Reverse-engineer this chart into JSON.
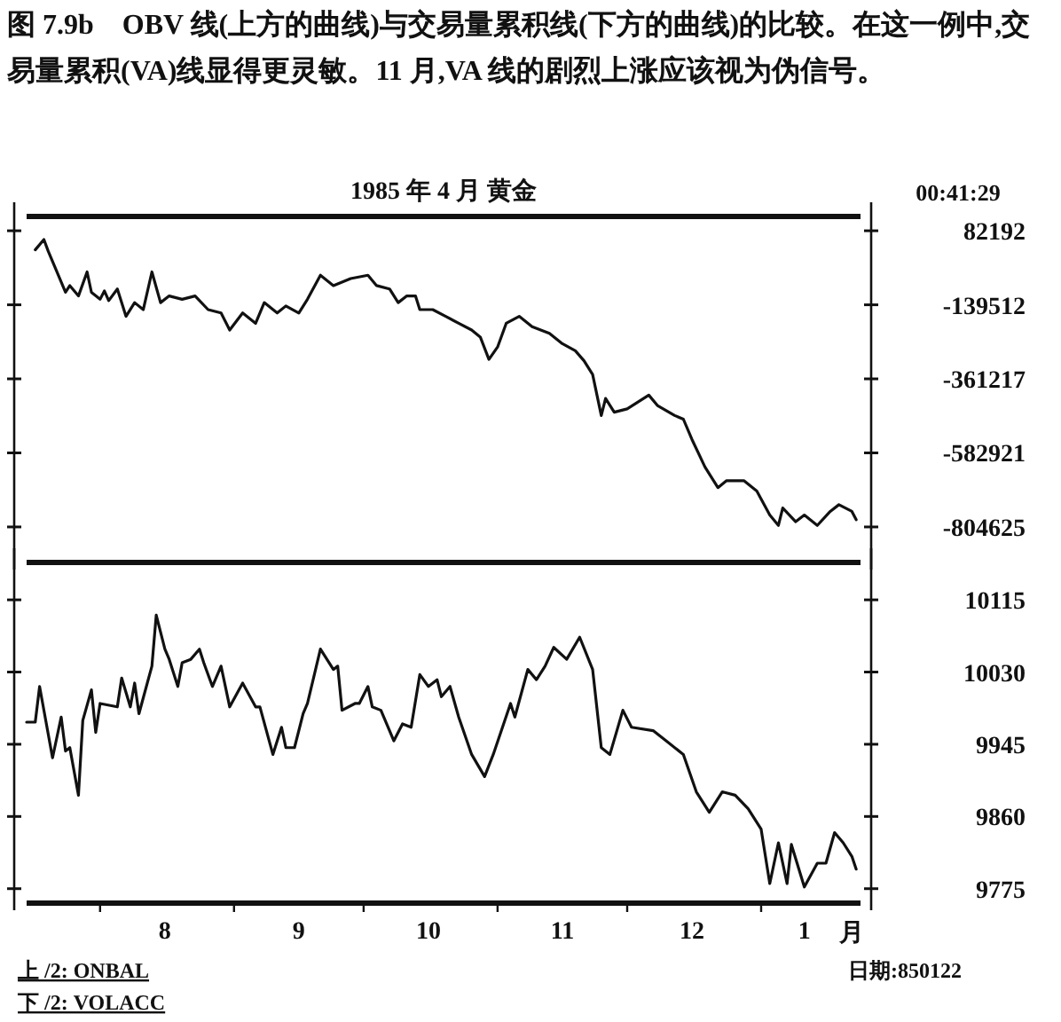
{
  "chart_data": [
    {
      "type": "line",
      "title": "1985 年 4 月 黄金",
      "annotations": [
        "图 7.9b　OBV 线(上方的曲线)与交易量累积线(下方的曲线)的比较。在这一例中,交易量累积(VA)线显得更灵敏。11 月,VA 线的剧烈上涨应该视为伪信号。",
        "00:41:29"
      ],
      "xlim": [
        "1984-07-15",
        "1985-01-24"
      ],
      "ylim": [
        -911000,
        125000
      ],
      "yticks": [
        82192,
        -139512,
        -361217,
        -582921,
        -804625
      ],
      "tick_labels": "y",
      "grid": false,
      "series": [
        {
          "color": "#111111",
          "x": [
            "1984-07-17",
            "1984-07-19",
            "1984-07-20",
            "1984-07-24",
            "1984-07-25",
            "1984-07-27",
            "1984-07-29",
            "1984-07-30",
            "1984-08-01",
            "1984-08-02",
            "1984-08-03",
            "1984-08-05",
            "1984-08-07",
            "1984-08-09",
            "1984-08-11",
            "1984-08-13",
            "1984-08-15",
            "1984-08-17",
            "1984-08-20",
            "1984-08-23",
            "1984-08-26",
            "1984-08-29",
            "1984-08-31",
            "1984-09-03",
            "1984-09-06",
            "1984-09-08",
            "1984-09-11",
            "1984-09-13",
            "1984-09-16",
            "1984-09-18",
            "1984-09-21",
            "1984-09-24",
            "1984-09-28",
            "1984-10-02",
            "1984-10-04",
            "1984-10-07",
            "1984-10-09",
            "1984-10-11",
            "1984-10-13",
            "1984-10-14",
            "1984-10-17",
            "1984-10-20",
            "1984-10-23",
            "1984-10-26",
            "1984-10-28",
            "1984-10-30",
            "1984-11-01",
            "1984-11-03",
            "1984-11-06",
            "1984-11-09",
            "1984-11-13",
            "1984-11-16",
            "1984-11-19",
            "1984-11-21",
            "1984-11-23",
            "1984-11-25",
            "1984-11-26",
            "1984-11-28",
            "1984-12-01",
            "1984-12-06",
            "1984-12-08",
            "1984-12-12",
            "1984-12-14",
            "1984-12-16",
            "1984-12-19",
            "1984-12-22",
            "1984-12-24",
            "1984-12-28",
            "1984-12-31",
            "1985-01-03",
            "1985-01-05",
            "1985-01-06",
            "1985-01-09",
            "1985-01-11",
            "1985-01-14",
            "1985-01-17",
            "1985-01-19",
            "1985-01-22",
            "1985-01-23"
          ],
          "values": [
            25000,
            56000,
            21000,
            -102000,
            -82000,
            -113000,
            -41000,
            -102000,
            -123000,
            -98000,
            -127000,
            -92000,
            -174000,
            -133000,
            -154000,
            -41000,
            -133000,
            -113000,
            -123000,
            -113000,
            -154000,
            -164000,
            -215000,
            -164000,
            -195000,
            -133000,
            -164000,
            -143000,
            -164000,
            -123000,
            -51000,
            -82000,
            -61000,
            -51000,
            -82000,
            -92000,
            -133000,
            -113000,
            -113000,
            -154000,
            -154000,
            -174000,
            -195000,
            -215000,
            -236000,
            -303000,
            -266000,
            -195000,
            -174000,
            -205000,
            -225000,
            -256000,
            -277000,
            -307000,
            -348000,
            -471000,
            -420000,
            -461000,
            -451000,
            -410000,
            -441000,
            -471000,
            -482000,
            -543000,
            -625000,
            -687000,
            -666000,
            -666000,
            -697000,
            -769000,
            -800000,
            -748000,
            -789000,
            -769000,
            -800000,
            -758000,
            -738000,
            -758000,
            -783000
          ]
        }
      ]
    },
    {
      "type": "line",
      "xlabel": "月",
      "annotations": [
        "上 /2: ONBAL",
        "下 /2: VOLACC",
        "日期:850122"
      ],
      "xlim": [
        "1984-07-15",
        "1985-01-24"
      ],
      "xticks": [
        {
          "value": "1984-08-01",
          "label": null
        },
        {
          "value": "1984-08-16",
          "label": "8"
        },
        {
          "value": "1984-09-01",
          "label": null
        },
        {
          "value": "1984-09-16",
          "label": "9"
        },
        {
          "value": "1984-10-01",
          "label": null
        },
        {
          "value": "1984-10-16",
          "label": "10"
        },
        {
          "value": "1984-11-01",
          "label": null
        },
        {
          "value": "1984-11-16",
          "label": "11"
        },
        {
          "value": "1984-12-01",
          "label": null
        },
        {
          "value": "1984-12-16",
          "label": "12"
        },
        {
          "value": "1985-01-01",
          "label": null
        },
        {
          "value": "1985-01-11",
          "label": "1"
        }
      ],
      "ylim": [
        9758,
        10159
      ],
      "yticks": [
        10115,
        10030,
        9945,
        9860,
        9775
      ],
      "grid": false,
      "series": [
        {
          "color": "#111111",
          "x": [
            "1984-07-15",
            "1984-07-17",
            "1984-07-18",
            "1984-07-21",
            "1984-07-23",
            "1984-07-24",
            "1984-07-25",
            "1984-07-27",
            "1984-07-28",
            "1984-07-30",
            "1984-07-31",
            "1984-08-01",
            "1984-08-05",
            "1984-08-06",
            "1984-08-08",
            "1984-08-09",
            "1984-08-10",
            "1984-08-13",
            "1984-08-14",
            "1984-08-16",
            "1984-08-17",
            "1984-08-19",
            "1984-08-20",
            "1984-08-22",
            "1984-08-24",
            "1984-08-25",
            "1984-08-27",
            "1984-08-29",
            "1984-08-31",
            "1984-09-03",
            "1984-09-06",
            "1984-09-07",
            "1984-09-10",
            "1984-09-12",
            "1984-09-13",
            "1984-09-15",
            "1984-09-17",
            "1984-09-18",
            "1984-09-21",
            "1984-09-24",
            "1984-09-25",
            "1984-09-26",
            "1984-09-29",
            "1984-09-30",
            "1984-10-02",
            "1984-10-03",
            "1984-10-05",
            "1984-10-08",
            "1984-10-10",
            "1984-10-12",
            "1984-10-14",
            "1984-10-16",
            "1984-10-18",
            "1984-10-19",
            "1984-10-21",
            "1984-10-23",
            "1984-10-26",
            "1984-10-29",
            "1984-10-31",
            "1984-11-04",
            "1984-11-05",
            "1984-11-08",
            "1984-11-10",
            "1984-11-12",
            "1984-11-14",
            "1984-11-17",
            "1984-11-20",
            "1984-11-23",
            "1984-11-25",
            "1984-11-27",
            "1984-11-30",
            "1984-12-02",
            "1984-12-07",
            "1984-12-10",
            "1984-12-14",
            "1984-12-17",
            "1984-12-20",
            "1984-12-23",
            "1984-12-26",
            "1984-12-29",
            "1985-01-01",
            "1985-01-03",
            "1985-01-05",
            "1985-01-07",
            "1985-01-08",
            "1985-01-11",
            "1985-01-14",
            "1985-01-16",
            "1985-01-18",
            "1985-01-20",
            "1985-01-22",
            "1985-01-23"
          ],
          "values": [
            9971,
            9971,
            10013,
            9929,
            9977,
            9937,
            9941,
            9885,
            9973,
            10009,
            9959,
            9993,
            9989,
            10023,
            9989,
            10017,
            9981,
            10037,
            10097,
            10057,
            10045,
            10013,
            10041,
            10045,
            10057,
            10041,
            10013,
            10037,
            9989,
            10017,
            9989,
            9989,
            9933,
            9965,
            9941,
            9941,
            9981,
            9993,
            10057,
            10033,
            10037,
            9985,
            9993,
            9993,
            10013,
            9989,
            9985,
            9949,
            9969,
            9965,
            10027,
            10013,
            10021,
            10001,
            10013,
            9977,
            9933,
            9907,
            9933,
            9993,
            9977,
            10033,
            10021,
            10037,
            10059,
            10045,
            10071,
            10033,
            9941,
            9933,
            9985,
            9965,
            9961,
            9949,
            9933,
            9889,
            9865,
            9889,
            9885,
            9869,
            9845,
            9781,
            9829,
            9781,
            9827,
            9777,
            9805,
            9805,
            9841,
            9829,
            9813,
            9798
          ]
        }
      ]
    }
  ]
}
